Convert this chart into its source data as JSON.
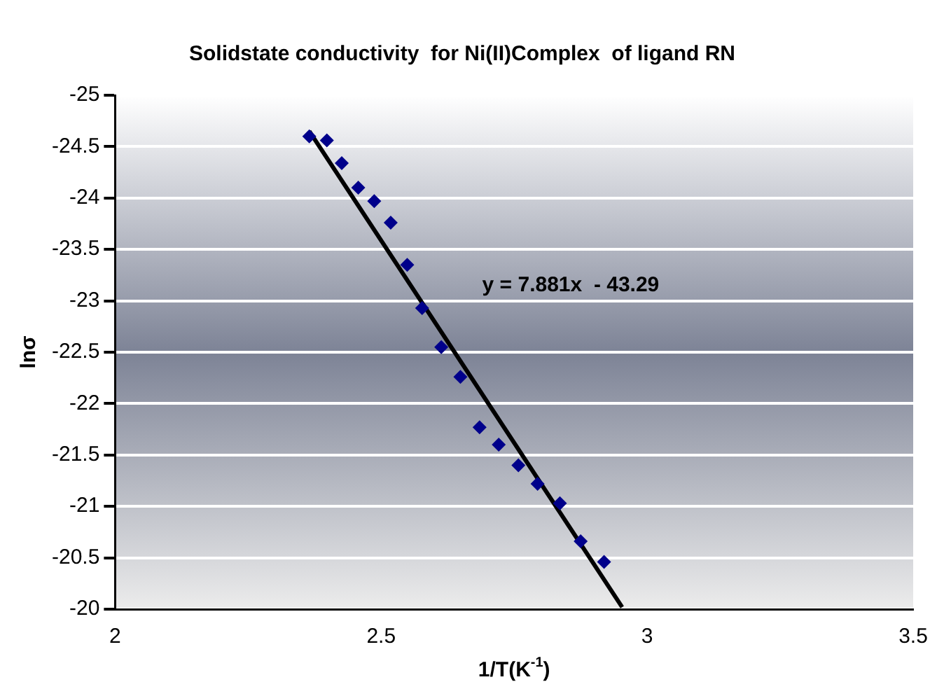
{
  "chart_data": {
    "type": "scatter",
    "title": "Solidstate conductivity  for Ni(II)Complex  of ligand RN",
    "xlabel": "1/T(K$^{-1}$)",
    "ylabel": "lnσ",
    "xlim": [
      2,
      3.5
    ],
    "xticks": [
      2,
      2.5,
      3,
      3.5
    ],
    "ylim": [
      -20,
      -25
    ],
    "yticks": [
      -25,
      -24.5,
      -24,
      -23.5,
      -23,
      -22.5,
      -22,
      -21.5,
      -21,
      -20.5,
      -20
    ],
    "grid": "y",
    "legend": false,
    "marker": "diamond",
    "series": [
      {
        "color": "#00008b",
        "x": [
          2.365,
          2.398,
          2.426,
          2.457,
          2.487,
          2.518,
          2.549,
          2.577,
          2.613,
          2.649,
          2.685,
          2.721,
          2.758,
          2.794,
          2.836,
          2.875,
          2.919
        ],
        "values": [
          -24.6,
          -24.56,
          -24.34,
          -24.1,
          -23.97,
          -23.76,
          -23.35,
          -22.93,
          -22.55,
          -22.26,
          -21.77,
          -21.6,
          -21.4,
          -21.22,
          -21.03,
          -20.66,
          -20.46
        ]
      },
      {
        "type": "line",
        "color": "#000000",
        "marker": "none",
        "x": [
          2.365,
          2.953
        ],
        "values": [
          -24.65,
          -20.02
        ]
      }
    ],
    "annotations": [
      "y = 7.881x  - 43.29"
    ]
  }
}
